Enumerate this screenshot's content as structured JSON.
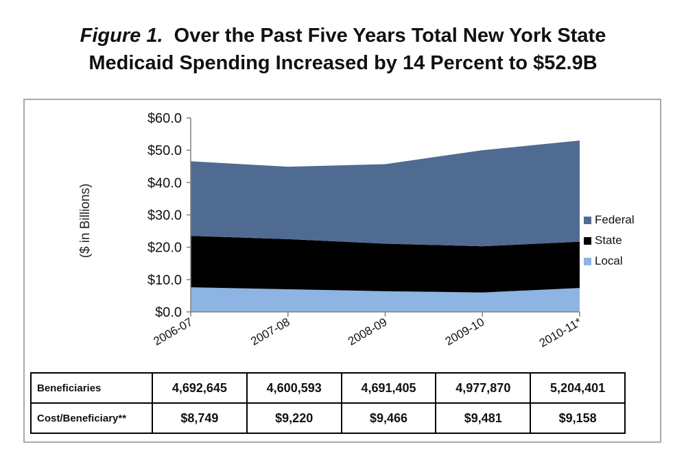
{
  "title": {
    "figure_label": "Figure 1.",
    "line1_rest": "Over the Past Five Years Total New York State",
    "line2": "Medicaid Spending Increased by 14 Percent to $52.9B"
  },
  "chart_data": {
    "type": "area",
    "stacked": true,
    "categories": [
      "2006-07",
      "2007-08",
      "2008-09",
      "2009-10",
      "2010-11*"
    ],
    "series": [
      {
        "name": "Local",
        "color": "#8db4e2",
        "values": [
          7.6,
          7.0,
          6.4,
          6.0,
          7.4
        ]
      },
      {
        "name": "State",
        "color": "#000000",
        "values": [
          15.9,
          15.5,
          14.7,
          14.3,
          14.3
        ]
      },
      {
        "name": "Federal",
        "color": "#4f6b91",
        "values": [
          23.1,
          22.4,
          24.6,
          29.7,
          31.3
        ]
      }
    ],
    "ylabel": "($ in Billions)",
    "ylim": [
      0,
      60
    ],
    "yticks": [
      0,
      10,
      20,
      30,
      40,
      50,
      60
    ],
    "ytick_labels": [
      "$0.0",
      "$10.0",
      "$20.0",
      "$30.0",
      "$40.0",
      "$50.0",
      "$60.0"
    ],
    "legend_position": "right",
    "legend_order": [
      "Federal",
      "State",
      "Local"
    ]
  },
  "table": {
    "rows": [
      {
        "label": "Beneficiaries",
        "values": [
          "4,692,645",
          "4,600,593",
          "4,691,405",
          "4,977,870",
          "5,204,401"
        ]
      },
      {
        "label": "Cost/Beneficiary**",
        "values": [
          "$8,749",
          "$9,220",
          "$9,466",
          "$9,481",
          "$9,158"
        ]
      }
    ]
  }
}
